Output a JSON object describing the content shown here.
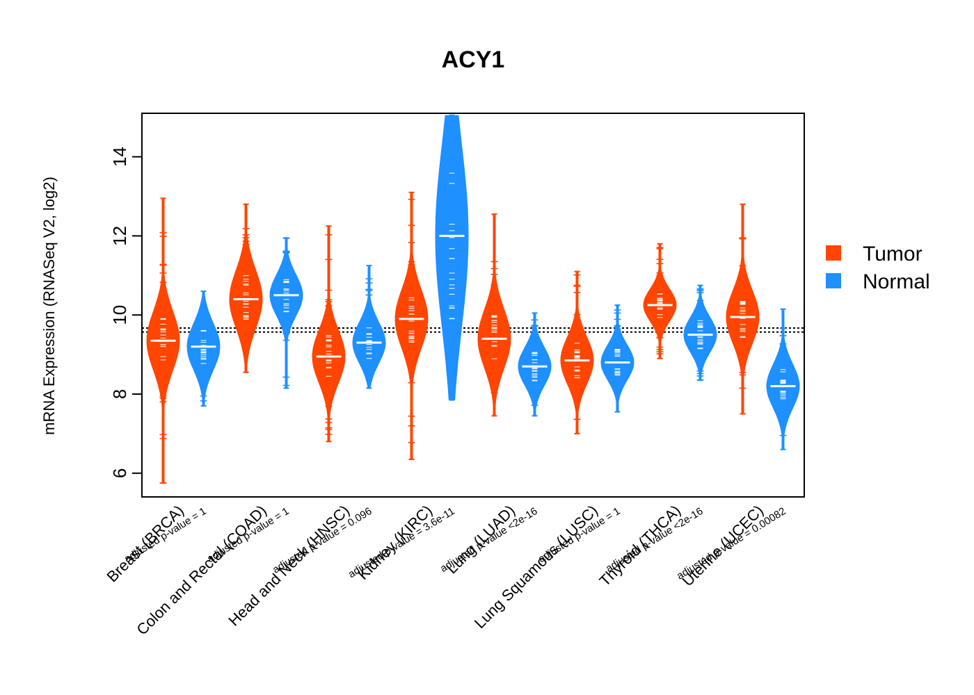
{
  "chart_data": {
    "type": "beanplot",
    "title": "ACY1",
    "ylabel": "mRNA Expression (RNASeq V2, log2)",
    "ylim": [
      5.4,
      15.1
    ],
    "yticks": [
      6,
      8,
      10,
      12,
      14
    ],
    "reference_lines": [
      9.57,
      9.67
    ],
    "legend": {
      "position": "right",
      "entries": [
        {
          "name": "Tumor",
          "color": "#FF4500"
        },
        {
          "name": "Normal",
          "color": "#1E90FF"
        }
      ]
    },
    "categories": [
      {
        "label": "Breast (BRCA)",
        "pvalue": "adjusted p-value = 1",
        "tumor": {
          "min": 5.75,
          "max": 12.95,
          "median": 9.35,
          "q1": 8.9,
          "q3": 9.9
        },
        "normal": {
          "min": 7.7,
          "max": 10.6,
          "median": 9.2,
          "q1": 8.8,
          "q3": 9.6
        }
      },
      {
        "label": "Colon and Rectal (COAD)",
        "pvalue": "adjusted p-value = 1",
        "tumor": {
          "min": 8.55,
          "max": 12.8,
          "median": 10.4,
          "q1": 9.9,
          "q3": 10.9
        },
        "normal": {
          "min": 8.15,
          "max": 11.95,
          "median": 10.5,
          "q1": 10.15,
          "q3": 10.85
        }
      },
      {
        "label": "Head and Neck (HNSC)",
        "pvalue": "adjusted p-value = 0.096",
        "tumor": {
          "min": 6.8,
          "max": 12.25,
          "median": 8.95,
          "q1": 8.5,
          "q3": 9.4
        },
        "normal": {
          "min": 8.15,
          "max": 11.25,
          "median": 9.3,
          "q1": 8.95,
          "q3": 9.65
        }
      },
      {
        "label": "Kidney (KIRC)",
        "pvalue": "adjusted p-value = 3.6e-11",
        "tumor": {
          "min": 6.35,
          "max": 13.1,
          "median": 9.9,
          "q1": 9.4,
          "q3": 10.4
        },
        "normal": {
          "min": 7.85,
          "max": 15.05,
          "median": 12.0,
          "q1": 10.2,
          "q3": 13.3
        }
      },
      {
        "label": "Lung (LUAD)",
        "pvalue": "adjusted p-value <2e-16",
        "tumor": {
          "min": 7.45,
          "max": 12.55,
          "median": 9.4,
          "q1": 8.9,
          "q3": 9.9
        },
        "normal": {
          "min": 7.45,
          "max": 10.05,
          "median": 8.7,
          "q1": 8.4,
          "q3": 9.05
        }
      },
      {
        "label": "Lung Squamous (LUSC)",
        "pvalue": "adjusted p-value = 1",
        "tumor": {
          "min": 7.0,
          "max": 11.1,
          "median": 8.85,
          "q1": 8.45,
          "q3": 9.25
        },
        "normal": {
          "min": 7.55,
          "max": 10.25,
          "median": 8.8,
          "q1": 8.5,
          "q3": 9.1
        }
      },
      {
        "label": "Thyroid (THCA)",
        "pvalue": "adjusted p-value <2e-16",
        "tumor": {
          "min": 8.9,
          "max": 11.8,
          "median": 10.25,
          "q1": 9.95,
          "q3": 10.5
        },
        "normal": {
          "min": 8.35,
          "max": 10.75,
          "median": 9.5,
          "q1": 9.2,
          "q3": 9.8
        }
      },
      {
        "label": "Uterine (UCEC)",
        "pvalue": "adjusted p-value = 0.00082",
        "tumor": {
          "min": 7.5,
          "max": 12.8,
          "median": 9.95,
          "q1": 9.5,
          "q3": 10.4
        },
        "normal": {
          "min": 6.6,
          "max": 10.15,
          "median": 8.2,
          "q1": 7.85,
          "q3": 8.6
        }
      }
    ]
  }
}
